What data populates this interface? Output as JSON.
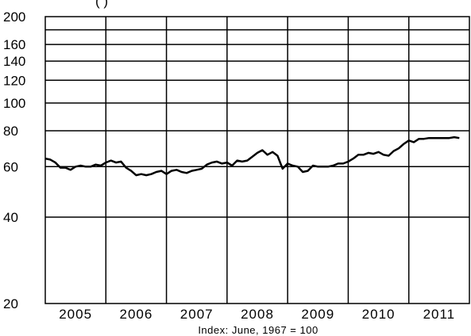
{
  "chart_data": {
    "type": "line",
    "title_partial": "(                              )",
    "xlabel": "Index:  June,  1967  =  100",
    "ylabel": "",
    "y_scale": "log",
    "ylim": [
      20,
      200
    ],
    "xlim": [
      2004.5,
      2011.5
    ],
    "y_ticks": [
      200,
      160,
      140,
      120,
      100,
      80,
      60,
      40,
      20
    ],
    "x_tick_labels": [
      "2005",
      "2006",
      "2007",
      "2008",
      "2009",
      "2010",
      "2011"
    ],
    "grid": true,
    "legend": "none",
    "line_color": "#000000",
    "series": [
      {
        "x": [
          2004.5,
          2004.583,
          2004.667,
          2004.75,
          2004.833,
          2004.917,
          2005.0,
          2005.083,
          2005.167,
          2005.25,
          2005.333,
          2005.417,
          2005.5,
          2005.583,
          2005.667,
          2005.75,
          2005.833,
          2005.917,
          2006.0,
          2006.083,
          2006.167,
          2006.25,
          2006.333,
          2006.417,
          2006.5,
          2006.583,
          2006.667,
          2006.75,
          2006.833,
          2006.917,
          2007.0,
          2007.083,
          2007.167,
          2007.25,
          2007.333,
          2007.417,
          2007.5,
          2007.583,
          2007.667,
          2007.75,
          2007.833,
          2007.917,
          2008.0,
          2008.083,
          2008.167,
          2008.25,
          2008.333,
          2008.417,
          2008.5,
          2008.583,
          2008.667,
          2008.75,
          2008.833,
          2008.917,
          2009.0,
          2009.083,
          2009.167,
          2009.25,
          2009.333,
          2009.417,
          2009.5,
          2009.583,
          2009.667,
          2009.75,
          2009.833,
          2009.917,
          2010.0,
          2010.083,
          2010.167,
          2010.25,
          2010.333,
          2010.417,
          2010.5,
          2010.583,
          2010.667,
          2010.75,
          2010.833,
          2010.917,
          2011.0,
          2011.083,
          2011.167,
          2011.25,
          2011.333
        ],
        "values": [
          64,
          63.5,
          62,
          59.5,
          59.5,
          58.5,
          60,
          60.5,
          60,
          60,
          61,
          60.5,
          62,
          63,
          62,
          62.5,
          59.5,
          58,
          56,
          56.5,
          56,
          56.5,
          57.5,
          58,
          56.5,
          58,
          58.5,
          57.5,
          57,
          58,
          58.5,
          59,
          61,
          62,
          62.5,
          61.5,
          62,
          60.5,
          63,
          62.5,
          63,
          65,
          67,
          68.5,
          66,
          67.5,
          65.5,
          59,
          61.5,
          60.5,
          60,
          57.5,
          58,
          60.5,
          60,
          60,
          60,
          60.5,
          61.5,
          61.5,
          62.5,
          64,
          66,
          66,
          67,
          66.5,
          67.5,
          66,
          65.5,
          68,
          69.5,
          72,
          74,
          73,
          75,
          75,
          75.5,
          75.5,
          75.5,
          75.5,
          75.5,
          76,
          75.5
        ]
      }
    ]
  }
}
